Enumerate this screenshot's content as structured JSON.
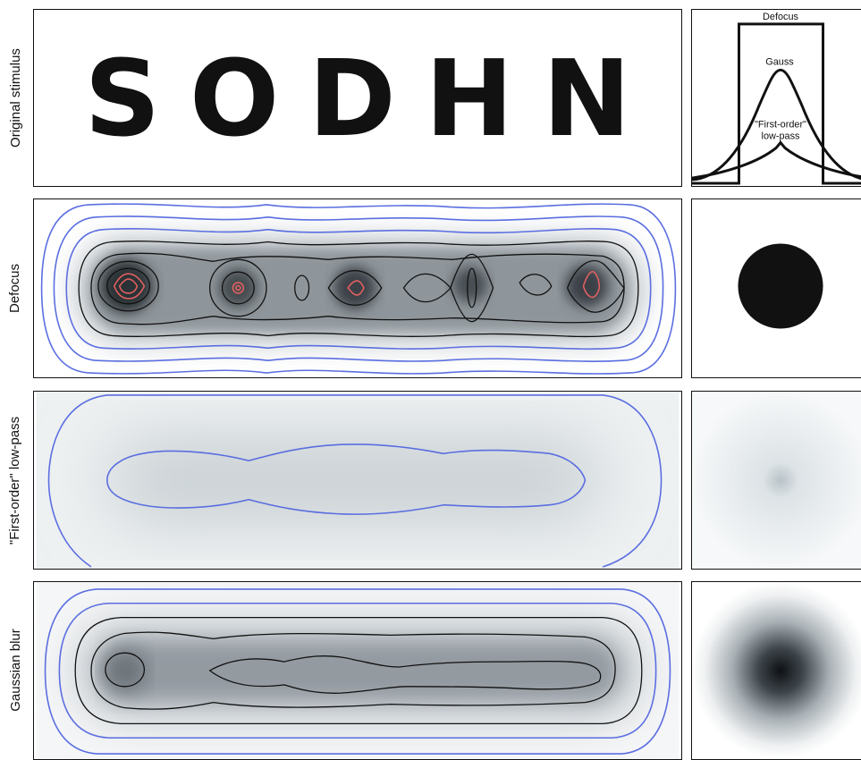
{
  "rows": [
    {
      "label": "Original stimulus"
    },
    {
      "label": "Defocus"
    },
    {
      "label": "\"First-order\" low-pass"
    },
    {
      "label": "Gaussian blur"
    }
  ],
  "stimulus": {
    "letters": [
      "S",
      "O",
      "D",
      "H",
      "N"
    ]
  },
  "profiles": {
    "defocus_label": "Defocus",
    "gauss_label": "Gauss",
    "first_order_label_line1": "\"First-order\"",
    "first_order_label_line2": "low-pass"
  },
  "colors": {
    "outer_contour": "#5a6ee0",
    "inner_contour": "#111111",
    "peak_contour": "#e06060",
    "blur_dark": "#1a1f24",
    "blur_light": "#f2f4f5"
  }
}
